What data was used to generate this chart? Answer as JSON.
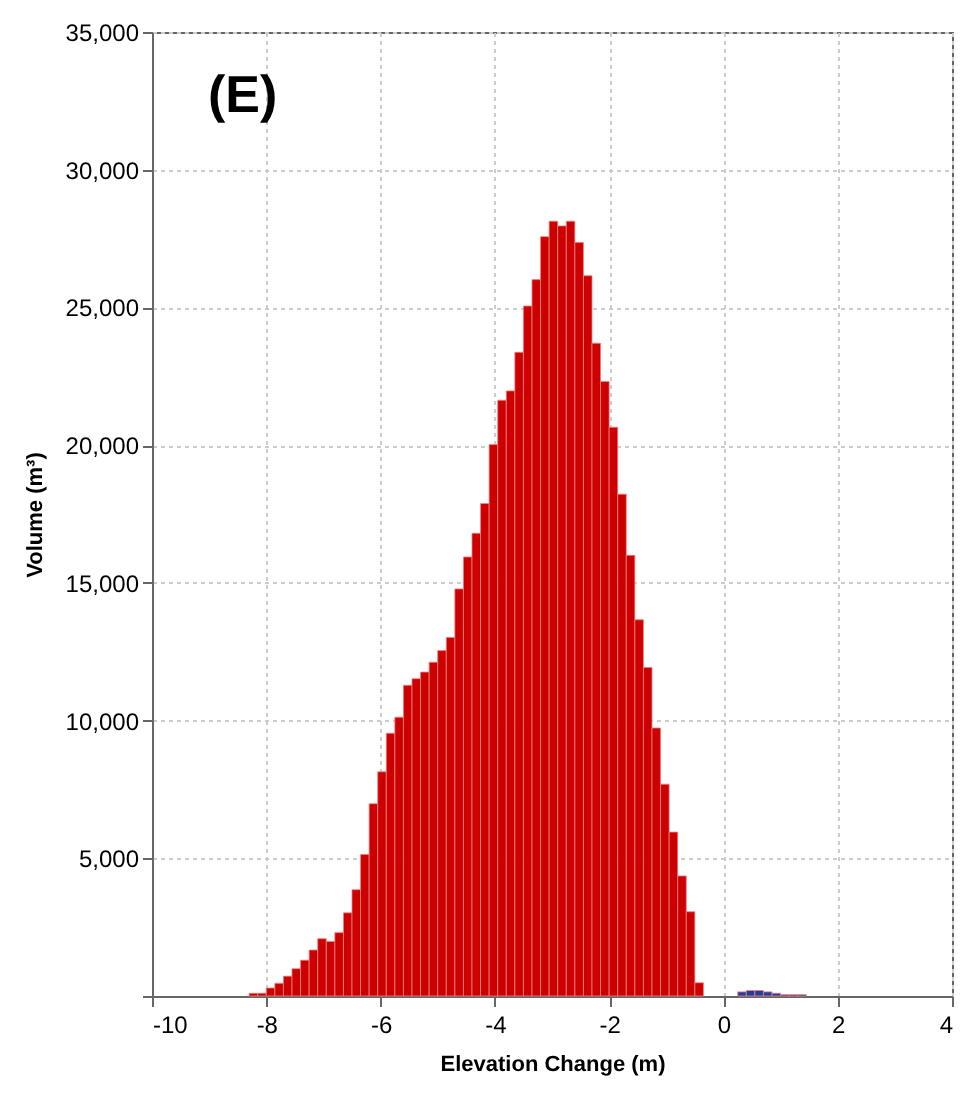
{
  "chart_data": {
    "type": "histogram",
    "xlabel": "Elevation Change (m)",
    "ylabel": "Volume (m³)",
    "annotations": [
      "(E)"
    ],
    "xlim": [
      -10,
      4
    ],
    "xticks": [
      -10,
      -8,
      -6,
      -4,
      -2,
      0,
      2,
      4
    ],
    "ylim": [
      0,
      35000
    ],
    "yticks": [
      {
        "value": 0,
        "label": null
      },
      {
        "value": 5000,
        "label": "5,000"
      },
      {
        "value": 10000,
        "label": "10,000"
      },
      {
        "value": 15000,
        "label": "15,000"
      },
      {
        "value": 20000,
        "label": "20,000"
      },
      {
        "value": 25000,
        "label": "25,000"
      },
      {
        "value": 30000,
        "label": "30,000"
      },
      {
        "value": 35000,
        "label": "35,000"
      }
    ],
    "grid": true,
    "bins": [
      -8.3,
      -8.15,
      -8.0,
      -7.85,
      -7.7,
      -7.55,
      -7.4,
      -7.25,
      -7.1,
      -6.95,
      -6.8,
      -6.65,
      -6.5,
      -6.35,
      -6.2,
      -6.05,
      -5.9,
      -5.75,
      -5.6,
      -5.45,
      -5.3,
      -5.15,
      -5.0,
      -4.85,
      -4.7,
      -4.55,
      -4.4,
      -4.25,
      -4.1,
      -3.95,
      -3.8,
      -3.65,
      -3.5,
      -3.35,
      -3.2,
      -3.05,
      -2.9,
      -2.75,
      -2.6,
      -2.45,
      -2.3,
      -2.15,
      -2.0,
      -1.85,
      -1.7,
      -1.55,
      -1.4,
      -1.25,
      -1.1,
      -0.95,
      -0.8,
      -0.65,
      -0.5,
      -0.35,
      -0.2,
      -0.05,
      0.1,
      0.25,
      0.4,
      0.55,
      0.7,
      0.85,
      1.0,
      1.15,
      1.3,
      1.45
    ],
    "series": [
      {
        "color": "#cc0000",
        "values": [
          100,
          100,
          290,
          460,
          720,
          990,
          1300,
          1670,
          2080,
          1980,
          2300,
          3020,
          3860,
          5140,
          6980,
          8140,
          9540,
          10120,
          11280,
          11520,
          11760,
          12120,
          12540,
          13020,
          14780,
          15940,
          16800,
          17880,
          20020,
          21630,
          21970,
          23370,
          25050,
          26010,
          27570,
          28130,
          27960,
          28130,
          27360,
          26150,
          23700,
          22310,
          20650,
          18220,
          16000,
          13660,
          11930,
          9730,
          7690,
          5950,
          4360,
          3060,
          480,
          null,
          null,
          null,
          null,
          null,
          null,
          null,
          null,
          null,
          null,
          null,
          null
        ]
      },
      {
        "color": "#1f3fa0",
        "values": [
          null,
          null,
          null,
          null,
          null,
          null,
          null,
          null,
          null,
          null,
          null,
          null,
          null,
          null,
          null,
          null,
          null,
          null,
          null,
          null,
          null,
          null,
          null,
          null,
          null,
          null,
          null,
          null,
          null,
          null,
          null,
          null,
          null,
          null,
          null,
          null,
          null,
          null,
          null,
          null,
          null,
          null,
          null,
          null,
          null,
          null,
          null,
          null,
          null,
          null,
          null,
          null,
          null,
          0,
          0,
          0,
          0,
          150,
          200,
          200,
          150,
          100,
          50,
          50,
          50
        ]
      }
    ]
  }
}
